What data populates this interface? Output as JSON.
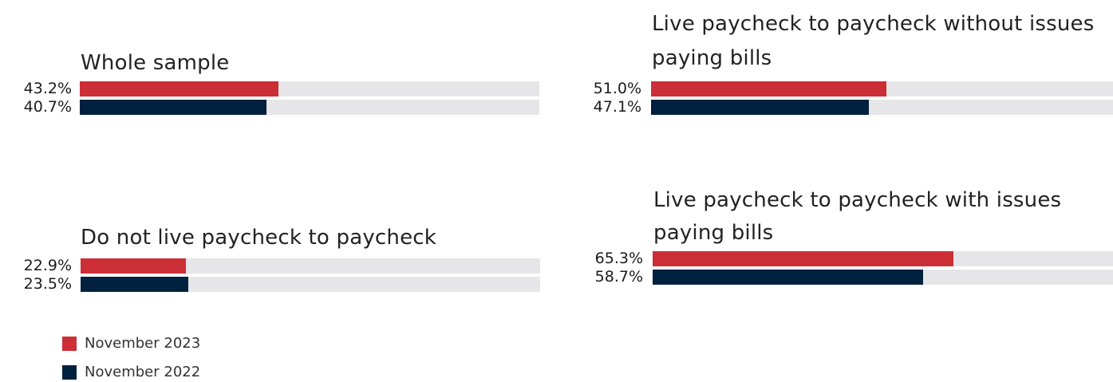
{
  "chart_data": {
    "type": "bar",
    "orientation": "horizontal",
    "xlim": [
      0,
      100
    ],
    "series": [
      {
        "name": "November 2023",
        "color": "#cc2e36"
      },
      {
        "name": "November 2022",
        "color": "#00203f"
      }
    ],
    "panels": [
      {
        "title_lines": [
          "Whole sample"
        ],
        "values": [
          43.2,
          40.7
        ],
        "labels": [
          "43.2%",
          "40.7%"
        ]
      },
      {
        "title_lines": [
          "Live paycheck to paycheck without issues",
          "paying bills"
        ],
        "values": [
          51.0,
          47.1
        ],
        "labels": [
          "51.0%",
          "47.1%"
        ]
      },
      {
        "title_lines": [
          "Do not live paycheck to paycheck"
        ],
        "values": [
          22.9,
          23.5
        ],
        "labels": [
          "22.9%",
          "23.5%"
        ]
      },
      {
        "title_lines": [
          "Live paycheck to paycheck with issues",
          "paying bills"
        ],
        "values": [
          65.3,
          58.7
        ],
        "labels": [
          "65.3%",
          "58.7%"
        ]
      }
    ],
    "legend": {
      "placement": "bottom-left",
      "items": [
        "November 2023",
        "November 2022"
      ]
    }
  }
}
